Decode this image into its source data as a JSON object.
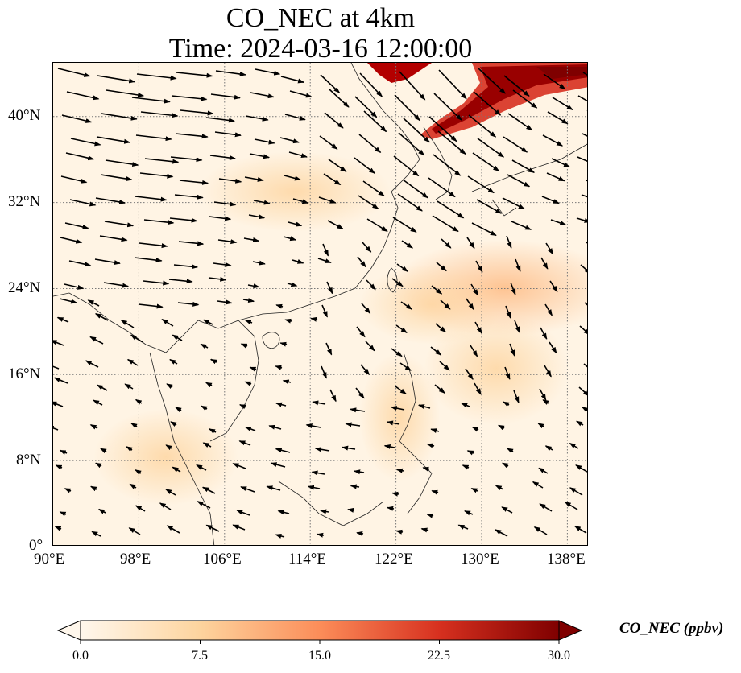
{
  "title_line1": "CO_NEC at 4km",
  "title_line2": "Time: 2024-03-16 12:00:00",
  "map": {
    "lon_ticks": [
      "90°E",
      "98°E",
      "106°E",
      "114°E",
      "122°E",
      "130°E",
      "138°E"
    ],
    "lat_ticks": [
      "0°",
      "8°N",
      "16°N",
      "24°N",
      "32°N",
      "40°N"
    ],
    "extent": {
      "lon": [
        90,
        140
      ],
      "lat": [
        0,
        45
      ]
    },
    "grid": "dotted"
  },
  "colorbar": {
    "title": "CO_NEC (ppbv)",
    "ticks": [
      "0.0",
      "7.5",
      "15.0",
      "22.5",
      "30.0"
    ],
    "range": [
      0,
      30
    ],
    "colormap": "OrRd",
    "colors": [
      "#fff7ec",
      "#fdd49e",
      "#fc8d59",
      "#d7301f",
      "#7f0000"
    ]
  },
  "chart_data": {
    "type": "heatmap",
    "title": "CO_NEC at 4km\nTime: 2024-03-16 12:00:00",
    "variable": "CO_NEC",
    "units": "ppbv",
    "colorbar_range": [
      0,
      30
    ],
    "x_range": [
      90,
      140
    ],
    "y_range": [
      0,
      45
    ],
    "overlay": "wind vectors",
    "notable_regions": [
      {
        "area": "Korea / NE China band",
        "approx_level": 30
      },
      {
        "area": "East China Sea / south of Japan",
        "approx_level": 10
      }
    ]
  }
}
